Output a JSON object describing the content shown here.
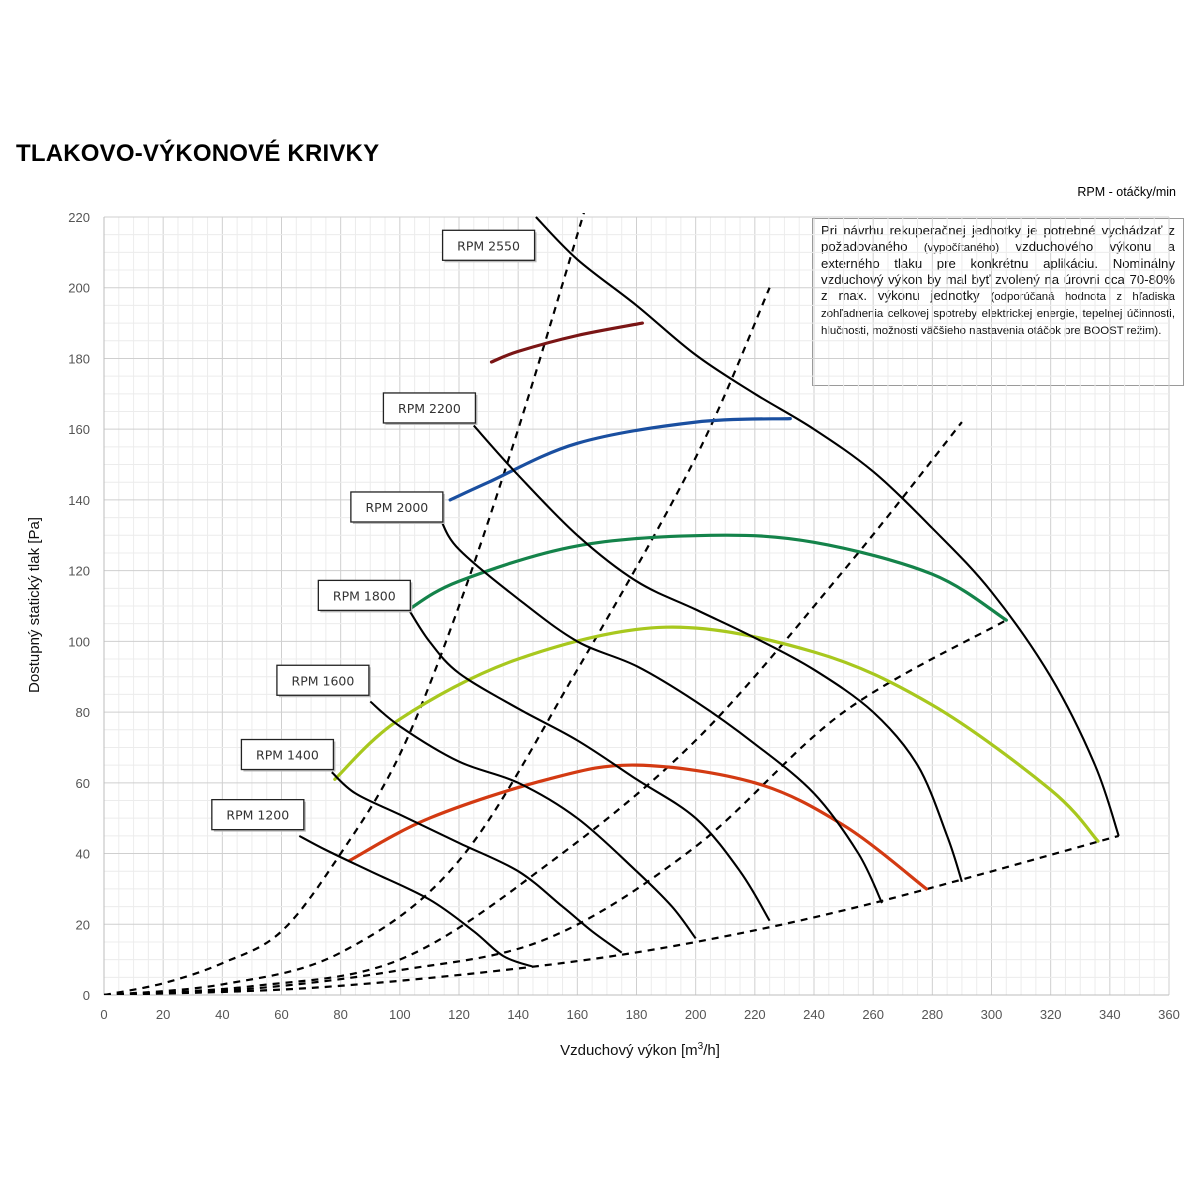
{
  "title": "TLAKOVO-VÝKONOVÉ KRIVKY",
  "rpm_note": "RPM - otáčky/min",
  "design_note": {
    "main": "Pri návrhu rekuperačnej jednotky je potrebné vychádzať z požadovaného",
    "main_small": "(vypočítaného)",
    "main_cont": "vzduchového výkonu a externého tlaku pre konkrétnu aplikáciu. Nominálny vzduchový výkon by mal byť zvolený na úrovni cca 70-80% z max. výkonu jednotky",
    "small": "(odporúčaná hodnota z hľadiska zohľadnenia celkovej spotreby elektrickej energie, tepelnej účinnosti, hlučnosti, možnosti väčšieho nastavenia otáčok pre BOOST režim)."
  },
  "colors": {
    "grid": "#dcdcdc",
    "fan_curve": "#000000",
    "dashed": "#000000",
    "dark_red": "#7a1515",
    "blue": "#1a4fa0",
    "green": "#14834a",
    "yellow_green": "#a8c81e",
    "orange_red": "#d33a12",
    "box_border": "#222222"
  },
  "chart_data": {
    "type": "line",
    "title": "TLAKOVO-VÝKONOVÉ KRIVKY",
    "xlabel": "Vzduchový výkon [m³/h]",
    "xlabel_main": "Vzduchový výkon [m",
    "xlabel_sup": "3",
    "xlabel_end": "/h]",
    "ylabel": "Dostupný statický tlak [Pa]",
    "xlim": [
      0,
      360
    ],
    "ylim": [
      0,
      220
    ],
    "xticks": [
      0,
      20,
      40,
      60,
      80,
      100,
      120,
      140,
      160,
      180,
      200,
      220,
      240,
      260,
      280,
      300,
      320,
      340,
      360
    ],
    "yticks": [
      0,
      20,
      40,
      60,
      80,
      100,
      120,
      140,
      160,
      180,
      200,
      220
    ],
    "grid": true,
    "fan_curves": [
      {
        "name": "RPM 1200",
        "points": [
          [
            66,
            45
          ],
          [
            75,
            41
          ],
          [
            90,
            35
          ],
          [
            110,
            27
          ],
          [
            125,
            18
          ],
          [
            135,
            11
          ],
          [
            145,
            8
          ]
        ]
      },
      {
        "name": "RPM 1400",
        "points": [
          [
            77,
            63
          ],
          [
            85,
            57
          ],
          [
            100,
            51
          ],
          [
            120,
            43
          ],
          [
            140,
            35
          ],
          [
            155,
            25
          ],
          [
            165,
            18
          ],
          [
            175,
            12
          ]
        ]
      },
      {
        "name": "RPM 1600",
        "points": [
          [
            90,
            83
          ],
          [
            100,
            76
          ],
          [
            120,
            66
          ],
          [
            140,
            60
          ],
          [
            160,
            50
          ],
          [
            180,
            35
          ],
          [
            192,
            25
          ],
          [
            200,
            16
          ]
        ]
      },
      {
        "name": "RPM 1800",
        "points": [
          [
            103,
            109
          ],
          [
            110,
            100
          ],
          [
            120,
            91
          ],
          [
            140,
            81
          ],
          [
            160,
            72
          ],
          [
            180,
            61
          ],
          [
            200,
            50
          ],
          [
            215,
            35
          ],
          [
            225,
            21
          ]
        ]
      },
      {
        "name": "RPM 2000",
        "points": [
          [
            114,
            134
          ],
          [
            120,
            126
          ],
          [
            140,
            112
          ],
          [
            160,
            100
          ],
          [
            180,
            93
          ],
          [
            200,
            83
          ],
          [
            220,
            71
          ],
          [
            240,
            57
          ],
          [
            255,
            40
          ],
          [
            263,
            26
          ]
        ]
      },
      {
        "name": "RPM 2200",
        "points": [
          [
            125,
            161
          ],
          [
            140,
            147
          ],
          [
            160,
            130
          ],
          [
            180,
            117
          ],
          [
            200,
            109
          ],
          [
            220,
            101
          ],
          [
            240,
            92
          ],
          [
            260,
            80
          ],
          [
            275,
            65
          ],
          [
            285,
            45
          ],
          [
            290,
            32
          ]
        ]
      },
      {
        "name": "RPM 2550",
        "points": [
          [
            146,
            220
          ],
          [
            160,
            208
          ],
          [
            180,
            195
          ],
          [
            200,
            181
          ],
          [
            220,
            170
          ],
          [
            240,
            160
          ],
          [
            260,
            148
          ],
          [
            280,
            132
          ],
          [
            300,
            114
          ],
          [
            320,
            90
          ],
          [
            335,
            65
          ],
          [
            343,
            45
          ]
        ]
      }
    ],
    "system_curves": [
      {
        "name": "k1",
        "points": [
          [
            0,
            0
          ],
          [
            20,
            3.3
          ],
          [
            40,
            9
          ],
          [
            60,
            18
          ],
          [
            80,
            40
          ],
          [
            100,
            68
          ],
          [
            120,
            110
          ],
          [
            140,
            160
          ],
          [
            160,
            215
          ],
          [
            166,
            232
          ]
        ]
      },
      {
        "name": "k2",
        "points": [
          [
            0,
            0
          ],
          [
            40,
            3
          ],
          [
            80,
            12
          ],
          [
            120,
            38
          ],
          [
            160,
            92
          ],
          [
            200,
            152
          ],
          [
            225,
            200
          ]
        ]
      },
      {
        "name": "k3",
        "points": [
          [
            0,
            0
          ],
          [
            50,
            2.5
          ],
          [
            100,
            10
          ],
          [
            150,
            37
          ],
          [
            200,
            72
          ],
          [
            250,
            120
          ],
          [
            290,
            162
          ]
        ]
      },
      {
        "name": "k4",
        "points": [
          [
            0,
            0
          ],
          [
            50,
            1.8
          ],
          [
            100,
            7
          ],
          [
            150,
            16
          ],
          [
            200,
            42
          ],
          [
            250,
            80
          ],
          [
            305,
            106
          ]
        ]
      },
      {
        "name": "k5",
        "points": [
          [
            0,
            0
          ],
          [
            70,
            2
          ],
          [
            145,
            8
          ],
          [
            200,
            15
          ],
          [
            260,
            26
          ],
          [
            343,
            45
          ]
        ]
      }
    ],
    "operating_curves": [
      {
        "name": "dark-red",
        "color": "dark_red",
        "points": [
          [
            131,
            179
          ],
          [
            140,
            182
          ],
          [
            160,
            186.5
          ],
          [
            182,
            190
          ]
        ]
      },
      {
        "name": "blue",
        "color": "blue",
        "points": [
          [
            117,
            140
          ],
          [
            130,
            145
          ],
          [
            160,
            156
          ],
          [
            200,
            162
          ],
          [
            232,
            163
          ]
        ]
      },
      {
        "name": "green",
        "color": "green",
        "points": [
          [
            103,
            109
          ],
          [
            120,
            117
          ],
          [
            160,
            127
          ],
          [
            205,
            130
          ],
          [
            240,
            128
          ],
          [
            280,
            119
          ],
          [
            305,
            106
          ]
        ]
      },
      {
        "name": "yellow-green",
        "color": "yellow_green",
        "points": [
          [
            78,
            61
          ],
          [
            100,
            78
          ],
          [
            140,
            95
          ],
          [
            190,
            104
          ],
          [
            240,
            97
          ],
          [
            280,
            82
          ],
          [
            320,
            58
          ],
          [
            336,
            43.5
          ]
        ]
      },
      {
        "name": "orange-red",
        "color": "orange_red",
        "points": [
          [
            83,
            38
          ],
          [
            110,
            50
          ],
          [
            150,
            61
          ],
          [
            180,
            65
          ],
          [
            220,
            60
          ],
          [
            250,
            48
          ],
          [
            278,
            30
          ]
        ]
      }
    ],
    "rpm_labels": [
      {
        "name": "RPM 2550",
        "x": 130,
        "y": 212
      },
      {
        "name": "RPM 2200",
        "x": 110,
        "y": 166
      },
      {
        "name": "RPM 2000",
        "x": 99,
        "y": 138
      },
      {
        "name": "RPM 1800",
        "x": 88,
        "y": 113
      },
      {
        "name": "RPM 1600",
        "x": 74,
        "y": 89
      },
      {
        "name": "RPM 1400",
        "x": 62,
        "y": 68
      },
      {
        "name": "RPM 1200",
        "x": 52,
        "y": 51
      }
    ]
  }
}
